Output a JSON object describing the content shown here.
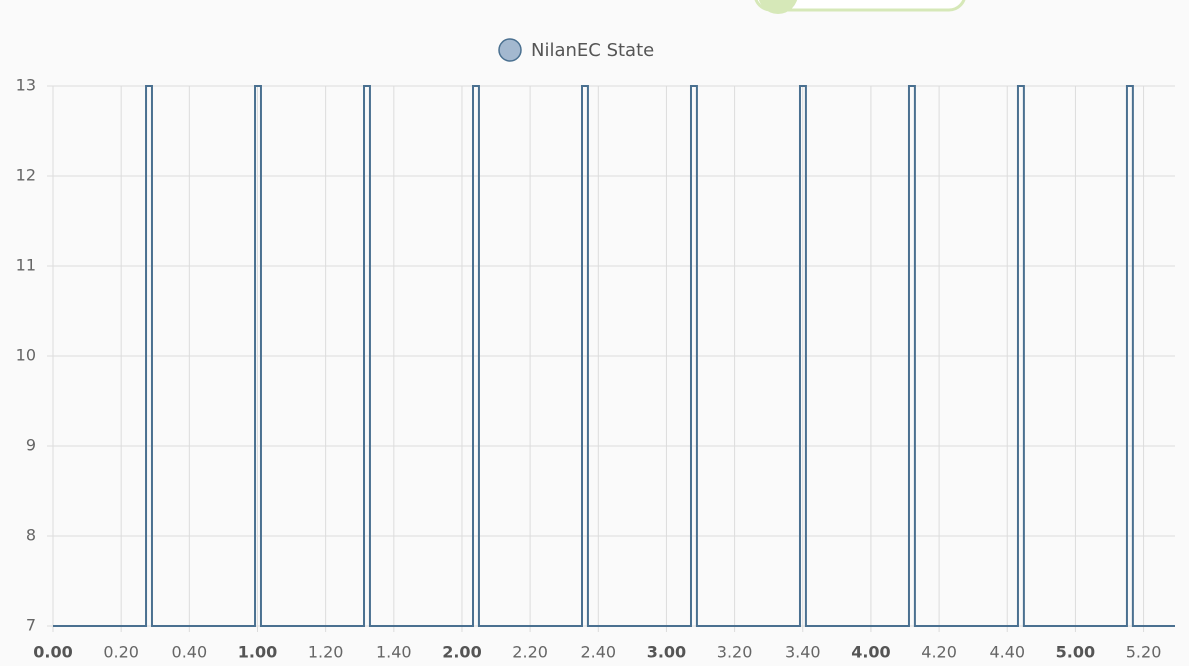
{
  "chart_data": {
    "type": "line",
    "step": "after",
    "grid": true,
    "series": [
      {
        "name": "NilanEC State",
        "color": "#4a7090",
        "fill": "#a3b8cf",
        "values": [
          7,
          13,
          7,
          13,
          7,
          13,
          7,
          13,
          7,
          13,
          7,
          13,
          7,
          13,
          7,
          13,
          7,
          13,
          7,
          13,
          7,
          7
        ]
      }
    ],
    "x": [
      0,
      0.455,
      0.484,
      0.988,
      1.017,
      1.521,
      1.55,
      2.054,
      2.083,
      2.587,
      2.616,
      3.12,
      3.149,
      3.653,
      3.682,
      4.186,
      4.215,
      4.719,
      4.748,
      5.252,
      5.281,
      5.487
    ],
    "xlim": [
      0,
      5.487
    ],
    "xticks": [
      {
        "value": 0,
        "label": "0.00"
      },
      {
        "value": 0.3333,
        "label": "0.20"
      },
      {
        "value": 0.6667,
        "label": "0.40"
      },
      {
        "value": 1,
        "label": "1.00"
      },
      {
        "value": 1.3333,
        "label": "1.20"
      },
      {
        "value": 1.6667,
        "label": "1.40"
      },
      {
        "value": 2,
        "label": "2.00"
      },
      {
        "value": 2.3333,
        "label": "2.20"
      },
      {
        "value": 2.6667,
        "label": "2.40"
      },
      {
        "value": 3,
        "label": "3.00"
      },
      {
        "value": 3.3333,
        "label": "3.20"
      },
      {
        "value": 3.6667,
        "label": "3.40"
      },
      {
        "value": 4,
        "label": "4.00"
      },
      {
        "value": 4.3333,
        "label": "4.20"
      },
      {
        "value": 4.6667,
        "label": "4.40"
      },
      {
        "value": 5,
        "label": "5.00"
      },
      {
        "value": 5.3333,
        "label": "5.20"
      }
    ],
    "ylim": [
      7,
      13
    ],
    "yticks": [
      7,
      8,
      9,
      10,
      11,
      12,
      13
    ]
  }
}
